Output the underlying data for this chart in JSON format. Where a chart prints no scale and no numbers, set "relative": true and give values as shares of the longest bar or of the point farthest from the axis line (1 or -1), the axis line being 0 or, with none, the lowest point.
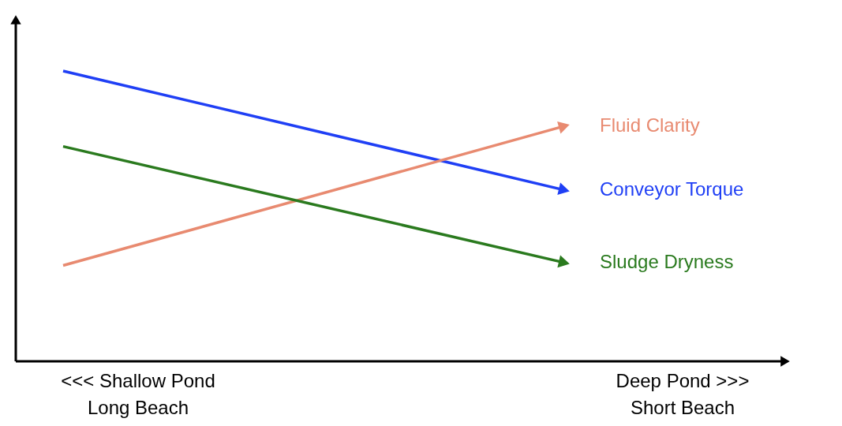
{
  "chart_data": {
    "type": "line",
    "relative": true,
    "categories": [
      null,
      null
    ],
    "series": [
      {
        "name": "Conveyor Torque",
        "color": "#1f3ff5",
        "values": [
          1.0,
          0.59
        ]
      },
      {
        "name": "Fluid Clarity",
        "color": "#e88a70",
        "values": [
          0.33,
          0.81
        ]
      },
      {
        "name": "Sludge Dryness",
        "color": "#2a7a1e",
        "values": [
          0.74,
          0.34
        ]
      }
    ],
    "annotations": [
      "<<< Shallow Pond\nLong Beach",
      "Deep Pond >>>\nShort Beach"
    ]
  }
}
